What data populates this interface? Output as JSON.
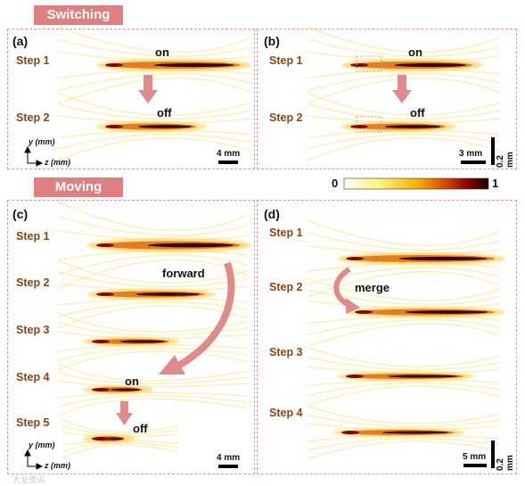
{
  "banners": {
    "switching": "Switching",
    "moving": "Moving"
  },
  "panels": {
    "a": {
      "label": "(a)",
      "steps": [
        "Step 1",
        "Step 2"
      ],
      "on": "on",
      "off": "off",
      "scale": "4 mm"
    },
    "b": {
      "label": "(b)",
      "steps": [
        "Step 1",
        "Step 2"
      ],
      "on": "on",
      "off": "off",
      "scale_h": "3 mm",
      "scale_v": "0.2 mm"
    },
    "c": {
      "label": "(c)",
      "steps": [
        "Step 1",
        "Step 2",
        "Step 3",
        "Step 4",
        "Step 5"
      ],
      "forward": "forward",
      "on": "on",
      "off": "off",
      "scale": "4 mm"
    },
    "d": {
      "label": "(d)",
      "steps": [
        "Step 1",
        "Step 2",
        "Step 3",
        "Step 4"
      ],
      "merge": "merge",
      "scale_h": "5 mm",
      "scale_v": "0.2 mm"
    }
  },
  "axes": {
    "y": "y (mm)",
    "z": "z (mm)"
  },
  "colorbar": {
    "min": "0",
    "max": "1",
    "colors": [
      "#ffffff",
      "#fff27a",
      "#f5b400",
      "#d94a00",
      "#8b0000",
      "#1a0000"
    ]
  },
  "watermark": "大业资讯"
}
